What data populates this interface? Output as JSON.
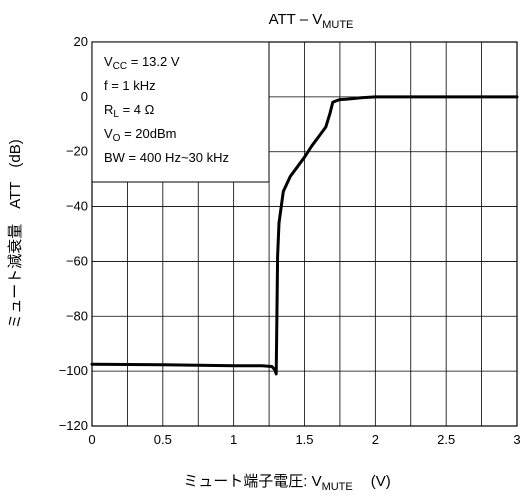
{
  "chart_data": {
    "type": "line",
    "title": {
      "main": "ATT – V",
      "sub": "MUTE"
    },
    "xlabel": {
      "main": "ミュート端子電圧: V",
      "sub": "MUTE",
      "unit": "(V)"
    },
    "ylabel": {
      "main": "ミュート減衰量　ATT",
      "unit": "(dB)"
    },
    "xlim": [
      0,
      3
    ],
    "ylim": [
      -120,
      20
    ],
    "x_ticks": [
      0,
      0.5,
      1,
      1.5,
      2,
      2.5,
      3
    ],
    "x_tick_labels": [
      "0",
      "0.5",
      "1",
      "1.5",
      "2",
      "2.5",
      "3"
    ],
    "y_ticks": [
      -120,
      -100,
      -80,
      -60,
      -40,
      -20,
      0,
      20
    ],
    "y_tick_labels": [
      "−120",
      "−100",
      "−80",
      "−60",
      "−40",
      "−20",
      "0",
      "20"
    ],
    "grid": {
      "x_step": 0.25,
      "y_step": 20
    },
    "legend_box": {
      "position": "top-left",
      "lines": [
        {
          "main": "V",
          "sub": "CC",
          "rest": " = 13.2 V"
        },
        {
          "main": "f = 1 kHz",
          "sub": "",
          "rest": ""
        },
        {
          "main": "R",
          "sub": "L",
          "rest": " = 4 Ω"
        },
        {
          "main": "V",
          "sub": "O",
          "rest": " = 20dBm"
        },
        {
          "main": "BW = 400 Hz~30 kHz",
          "sub": "",
          "rest": ""
        }
      ]
    },
    "series": [
      {
        "x": [
          0,
          0.5,
          1.0,
          1.2,
          1.27,
          1.29,
          1.3,
          1.305,
          1.31,
          1.32,
          1.35,
          1.4,
          1.45,
          1.5,
          1.55,
          1.6,
          1.65,
          1.68,
          1.7,
          1.72,
          1.75,
          1.8,
          1.9,
          2.0,
          2.5,
          3.0
        ],
        "y": [
          -97.5,
          -97.7,
          -98.0,
          -98.0,
          -98.3,
          -99.5,
          -101,
          -80,
          -58,
          -46,
          -34.5,
          -29,
          -25.5,
          -22,
          -18,
          -14.5,
          -11,
          -6,
          -2,
          -1.5,
          -1.0,
          -0.8,
          -0.3,
          0,
          0,
          0
        ]
      }
    ]
  }
}
